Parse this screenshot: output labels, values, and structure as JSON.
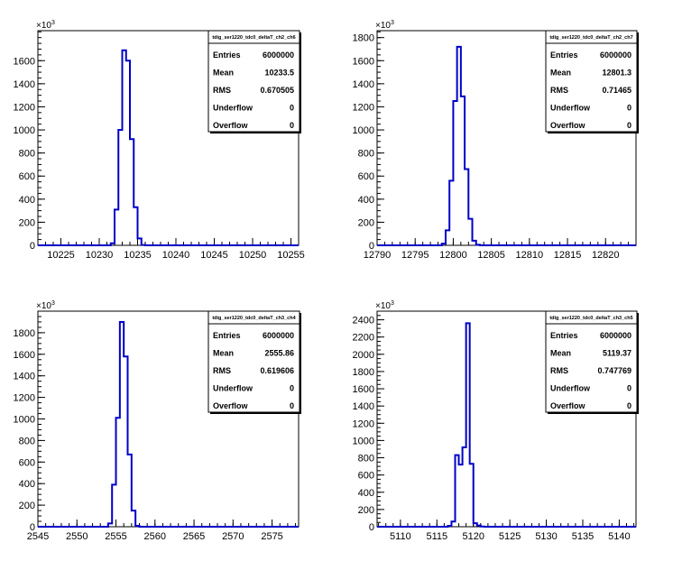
{
  "chart_data": [
    {
      "type": "histogram",
      "title": "tdig_ser1220_tdc0_deltaT_ch2_ch6",
      "y_exponent": "×10",
      "y_exponent_power": "3",
      "xlim": [
        10222,
        10256
      ],
      "ylim": [
        0,
        1860
      ],
      "xticks": [
        "10225",
        "10230",
        "10235",
        "10240",
        "10245",
        "10250",
        "10255"
      ],
      "yticks": [
        "0",
        "200",
        "400",
        "600",
        "800",
        "1000",
        "1200",
        "1400",
        "1600"
      ],
      "bins": [
        {
          "x0": 10231.5,
          "x1": 10232.0,
          "y": 18
        },
        {
          "x0": 10232.0,
          "x1": 10232.5,
          "y": 310
        },
        {
          "x0": 10232.5,
          "x1": 10233.0,
          "y": 1000
        },
        {
          "x0": 10233.0,
          "x1": 10233.5,
          "y": 1690
        },
        {
          "x0": 10233.5,
          "x1": 10234.0,
          "y": 1600
        },
        {
          "x0": 10234.0,
          "x1": 10234.5,
          "y": 920
        },
        {
          "x0": 10234.5,
          "x1": 10235.0,
          "y": 330
        },
        {
          "x0": 10235.0,
          "x1": 10235.5,
          "y": 60
        },
        {
          "x0": 10235.5,
          "x1": 10236.0,
          "y": 3
        }
      ],
      "stats": [
        {
          "label": "Entries",
          "value": "6000000"
        },
        {
          "label": "Mean",
          "value": "10233.5"
        },
        {
          "label": "RMS",
          "value": "0.670505"
        },
        {
          "label": "Underflow",
          "value": "0"
        },
        {
          "label": "Overflow",
          "value": "0"
        }
      ]
    },
    {
      "type": "histogram",
      "title": "tdig_ser1220_tdc0_deltaT_ch2_ch7",
      "y_exponent": "×10",
      "y_exponent_power": "3",
      "xlim": [
        12790,
        12824
      ],
      "ylim": [
        0,
        1860
      ],
      "xticks": [
        "12790",
        "12795",
        "12800",
        "12805",
        "12810",
        "12815",
        "12820"
      ],
      "yticks": [
        "0",
        "200",
        "400",
        "600",
        "800",
        "1000",
        "1200",
        "1400",
        "1600",
        "1800"
      ],
      "bins": [
        {
          "x0": 12798.5,
          "x1": 12799.0,
          "y": 15
        },
        {
          "x0": 12799.0,
          "x1": 12799.5,
          "y": 130
        },
        {
          "x0": 12799.5,
          "x1": 12800.0,
          "y": 560
        },
        {
          "x0": 12800.0,
          "x1": 12800.5,
          "y": 1250
        },
        {
          "x0": 12800.5,
          "x1": 12801.0,
          "y": 1720
        },
        {
          "x0": 12801.0,
          "x1": 12801.5,
          "y": 1290
        },
        {
          "x0": 12801.5,
          "x1": 12802.0,
          "y": 660
        },
        {
          "x0": 12802.0,
          "x1": 12802.5,
          "y": 230
        },
        {
          "x0": 12802.5,
          "x1": 12803.0,
          "y": 40
        },
        {
          "x0": 12803.0,
          "x1": 12803.5,
          "y": 5
        }
      ],
      "stats": [
        {
          "label": "Entries",
          "value": "6000000"
        },
        {
          "label": "Mean",
          "value": "12801.3"
        },
        {
          "label": "RMS",
          "value": "0.71465"
        },
        {
          "label": "Underflow",
          "value": "0"
        },
        {
          "label": "Overflow",
          "value": "0"
        }
      ]
    },
    {
      "type": "histogram",
      "title": "tdig_ser1220_tdc0_deltaT_ch3_ch4",
      "y_exponent": "×10",
      "y_exponent_power": "3",
      "xlim": [
        2545,
        2578.4
      ],
      "ylim": [
        0,
        2000
      ],
      "xticks": [
        "2545",
        "2550",
        "2555",
        "2560",
        "2565",
        "2570",
        "2575"
      ],
      "yticks": [
        "0",
        "200",
        "400",
        "600",
        "800",
        "1000",
        "1200",
        "1400",
        "1600",
        "1800"
      ],
      "bins": [
        {
          "x0": 2554.0,
          "x1": 2554.5,
          "y": 30
        },
        {
          "x0": 2554.5,
          "x1": 2555.0,
          "y": 390
        },
        {
          "x0": 2555.0,
          "x1": 2555.5,
          "y": 1010
        },
        {
          "x0": 2555.5,
          "x1": 2556.0,
          "y": 1900
        },
        {
          "x0": 2556.0,
          "x1": 2556.5,
          "y": 1580
        },
        {
          "x0": 2556.5,
          "x1": 2557.0,
          "y": 670
        },
        {
          "x0": 2557.0,
          "x1": 2557.5,
          "y": 150
        },
        {
          "x0": 2557.5,
          "x1": 2558.0,
          "y": 8
        }
      ],
      "stats": [
        {
          "label": "Entries",
          "value": "6000000"
        },
        {
          "label": "Mean",
          "value": "2555.86"
        },
        {
          "label": "RMS",
          "value": "0.619606"
        },
        {
          "label": "Underflow",
          "value": "0"
        },
        {
          "label": "Overflow",
          "value": "0"
        }
      ]
    },
    {
      "type": "histogram",
      "title": "tdig_ser1220_tdc0_deltaT_ch3_ch5",
      "y_exponent": "×10",
      "y_exponent_power": "3",
      "xlim": [
        5106.8,
        5142.3
      ],
      "ylim": [
        0,
        2500
      ],
      "xticks": [
        "5110",
        "5115",
        "5120",
        "5125",
        "5130",
        "5135",
        "5140"
      ],
      "yticks": [
        "0",
        "200",
        "400",
        "600",
        "800",
        "1000",
        "1200",
        "1400",
        "1600",
        "1800",
        "2000",
        "2200",
        "2400"
      ],
      "bins": [
        {
          "x0": 5116.5,
          "x1": 5117.0,
          "y": 10
        },
        {
          "x0": 5117.0,
          "x1": 5117.5,
          "y": 60
        },
        {
          "x0": 5117.5,
          "x1": 5118.0,
          "y": 830
        },
        {
          "x0": 5118.0,
          "x1": 5118.5,
          "y": 720
        },
        {
          "x0": 5118.5,
          "x1": 5119.0,
          "y": 920
        },
        {
          "x0": 5119.0,
          "x1": 5119.5,
          "y": 2360
        },
        {
          "x0": 5119.5,
          "x1": 5120.0,
          "y": 730
        },
        {
          "x0": 5120.0,
          "x1": 5120.5,
          "y": 40
        },
        {
          "x0": 5120.5,
          "x1": 5121.0,
          "y": 15
        },
        {
          "x0": 5121.0,
          "x1": 5121.5,
          "y": 3
        }
      ],
      "stats": [
        {
          "label": "Entries",
          "value": "6000000"
        },
        {
          "label": "Mean",
          "value": "5119.37"
        },
        {
          "label": "RMS",
          "value": "0.747769"
        },
        {
          "label": "Underflow",
          "value": "0"
        },
        {
          "label": "Overflow",
          "value": "0"
        }
      ]
    }
  ]
}
